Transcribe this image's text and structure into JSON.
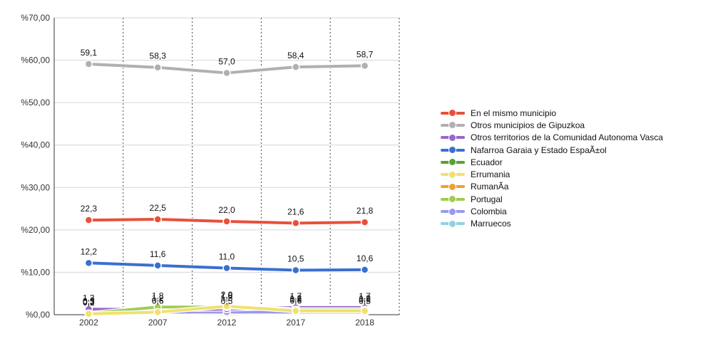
{
  "chart_data": {
    "type": "line",
    "categories": [
      "2002",
      "2007",
      "2012",
      "2017",
      "2018"
    ],
    "ylim": [
      0,
      70
    ],
    "y_ticks": [
      "%0,00",
      "%10,00",
      "%20,00",
      "%30,00",
      "%40,00",
      "%50,00",
      "%60,00",
      "%70,00"
    ],
    "grid": true,
    "legend_position": "right",
    "series": [
      {
        "name": "En el mismo municipio",
        "color": "#e8503a",
        "values": [
          22.3,
          22.5,
          22.0,
          21.6,
          21.8
        ],
        "labels": [
          "22,3",
          "22,5",
          "22,0",
          "21,6",
          "21,8"
        ],
        "show_labels": true
      },
      {
        "name": "Otros municipios de Gipuzkoa",
        "color": "#b0b0b0",
        "values": [
          59.1,
          58.3,
          57.0,
          58.4,
          58.7
        ],
        "labels": [
          "59,1",
          "58,3",
          "57,0",
          "58,4",
          "58,7"
        ],
        "show_labels": true
      },
      {
        "name": "Otros territorios de la Comunidad Autonoma Vasca",
        "color": "#9966cc",
        "values": [
          1.3,
          1.2,
          1.3,
          1.7,
          1.7
        ],
        "labels": [
          "1,3",
          "1,2",
          "1,3",
          "1,7",
          "1,7"
        ],
        "show_labels": true
      },
      {
        "name": "Nafarroa Garaia y Estado EspaÃ±ol",
        "color": "#3a6fd0",
        "values": [
          12.2,
          11.6,
          11.0,
          10.5,
          10.6
        ],
        "labels": [
          "12,2",
          "11,6",
          "11,0",
          "10,5",
          "10,6"
        ],
        "show_labels": true
      },
      {
        "name": "Ecuador",
        "color": "#5aa033",
        "values": [
          0.5,
          0.6,
          0.5,
          0.6,
          0.5
        ],
        "labels": [
          "0,5",
          "0,6",
          "0,5",
          "0,6",
          "0,5"
        ],
        "show_labels": true
      },
      {
        "name": "Errumania",
        "color": "#f0e070",
        "values": [
          0.2,
          0.6,
          2.0,
          0.9,
          0.9
        ],
        "labels": [
          "0,2",
          "0,6",
          "2,0",
          "0,9",
          "0,9"
        ],
        "show_labels": true
      },
      {
        "name": "RumanÃ­a",
        "color": "#f0a030",
        "values": [
          0.0,
          0.5,
          0.2,
          0.4,
          0.3
        ],
        "labels": [
          "0,0",
          "0,5",
          "0,2",
          "0,4",
          "0,3"
        ],
        "show_labels": false
      },
      {
        "name": "Portugal",
        "color": "#a0cc50",
        "values": [
          0.3,
          1.8,
          1.8,
          1.2,
          1.2
        ],
        "labels": [
          "0,3",
          "1,8",
          "1,8",
          "1,2",
          "1,2"
        ],
        "show_labels": true
      },
      {
        "name": "Colombia",
        "color": "#9999ee",
        "values": [
          0.3,
          0.6,
          0.6,
          0.6,
          0.6
        ],
        "labels": [
          "0,3",
          "0,6",
          "0,6",
          "0,6",
          "0,6"
        ],
        "show_labels": false
      },
      {
        "name": "Marruecos",
        "color": "#8fd4dc",
        "values": [
          0.2,
          0.4,
          0.5,
          0.4,
          0.4
        ],
        "labels": [
          "0,2",
          "0,4",
          "0,5",
          "0,4",
          "0,4"
        ],
        "show_labels": false
      }
    ]
  }
}
